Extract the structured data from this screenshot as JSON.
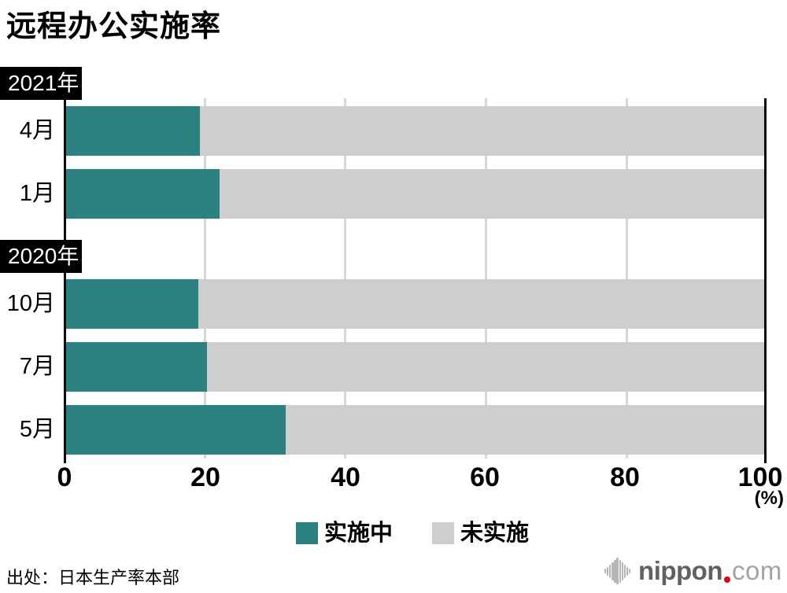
{
  "title": "远程办公实施率",
  "chart_data": {
    "type": "bar",
    "orientation": "horizontal",
    "stacked": true,
    "title": "远程办公实施率",
    "xlim": [
      0,
      100
    ],
    "unit": "(%)",
    "grid": true,
    "legend_position": "bottom",
    "series_names": [
      "实施中",
      "未实施"
    ],
    "series_colors": [
      "#2b8180",
      "#cecece"
    ],
    "groups": [
      {
        "label": "2021年",
        "rows": [
          {
            "month": "4月",
            "implementing": 19.2,
            "not_implementing": 80.8
          },
          {
            "month": "1月",
            "implementing": 22.0,
            "not_implementing": 78.0
          }
        ]
      },
      {
        "label": "2020年",
        "rows": [
          {
            "month": "10月",
            "implementing": 18.9,
            "not_implementing": 81.1
          },
          {
            "month": "7月",
            "implementing": 20.2,
            "not_implementing": 79.8
          },
          {
            "month": "5月",
            "implementing": 31.5,
            "not_implementing": 68.5
          }
        ]
      }
    ]
  },
  "axis": {
    "ticks": [
      "0",
      "20",
      "40",
      "60",
      "80",
      "100"
    ],
    "unit": "(%)"
  },
  "legend": {
    "items": [
      {
        "label": "实施中",
        "color": "#2b8180"
      },
      {
        "label": "未实施",
        "color": "#cecece"
      }
    ]
  },
  "footer": {
    "source": "出处：日本生产率本部",
    "logo": {
      "name": "nippon",
      "tld": "com",
      "dot_color": "#e60012",
      "icon": "soundwave-icon"
    }
  }
}
